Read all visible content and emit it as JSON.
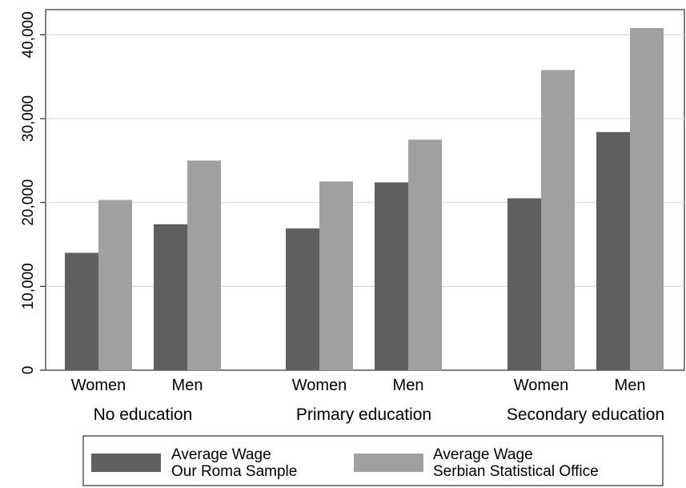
{
  "chart_data": {
    "type": "bar",
    "groups": [
      {
        "label": "No education",
        "categories": [
          "Women",
          "Men"
        ]
      },
      {
        "label": "Primary education",
        "categories": [
          "Women",
          "Men"
        ]
      },
      {
        "label": "Secondary education",
        "categories": [
          "Women",
          "Men"
        ]
      }
    ],
    "series": [
      {
        "name": "Average Wage Our Roma Sample",
        "legend_lines": [
          "Average Wage",
          "Our Roma Sample"
        ],
        "color": "#5f5f5f",
        "values": [
          14000,
          17400,
          16900,
          22400,
          20500,
          28400
        ]
      },
      {
        "name": "Average Wage Serbian Statistical Office",
        "legend_lines": [
          "Average Wage",
          "Serbian Statistical Office"
        ],
        "color": "#a0a0a0",
        "values": [
          20300,
          25000,
          22500,
          27500,
          35800,
          40800
        ]
      }
    ],
    "ylim": [
      0,
      43000
    ],
    "yticks": [
      0,
      10000,
      20000,
      30000,
      40000
    ],
    "ytick_labels": [
      "0",
      "10,000",
      "20,000",
      "30,000",
      "40,000"
    ],
    "grid": true,
    "legend_position": "bottom",
    "title": "",
    "xlabel": "",
    "ylabel": ""
  }
}
